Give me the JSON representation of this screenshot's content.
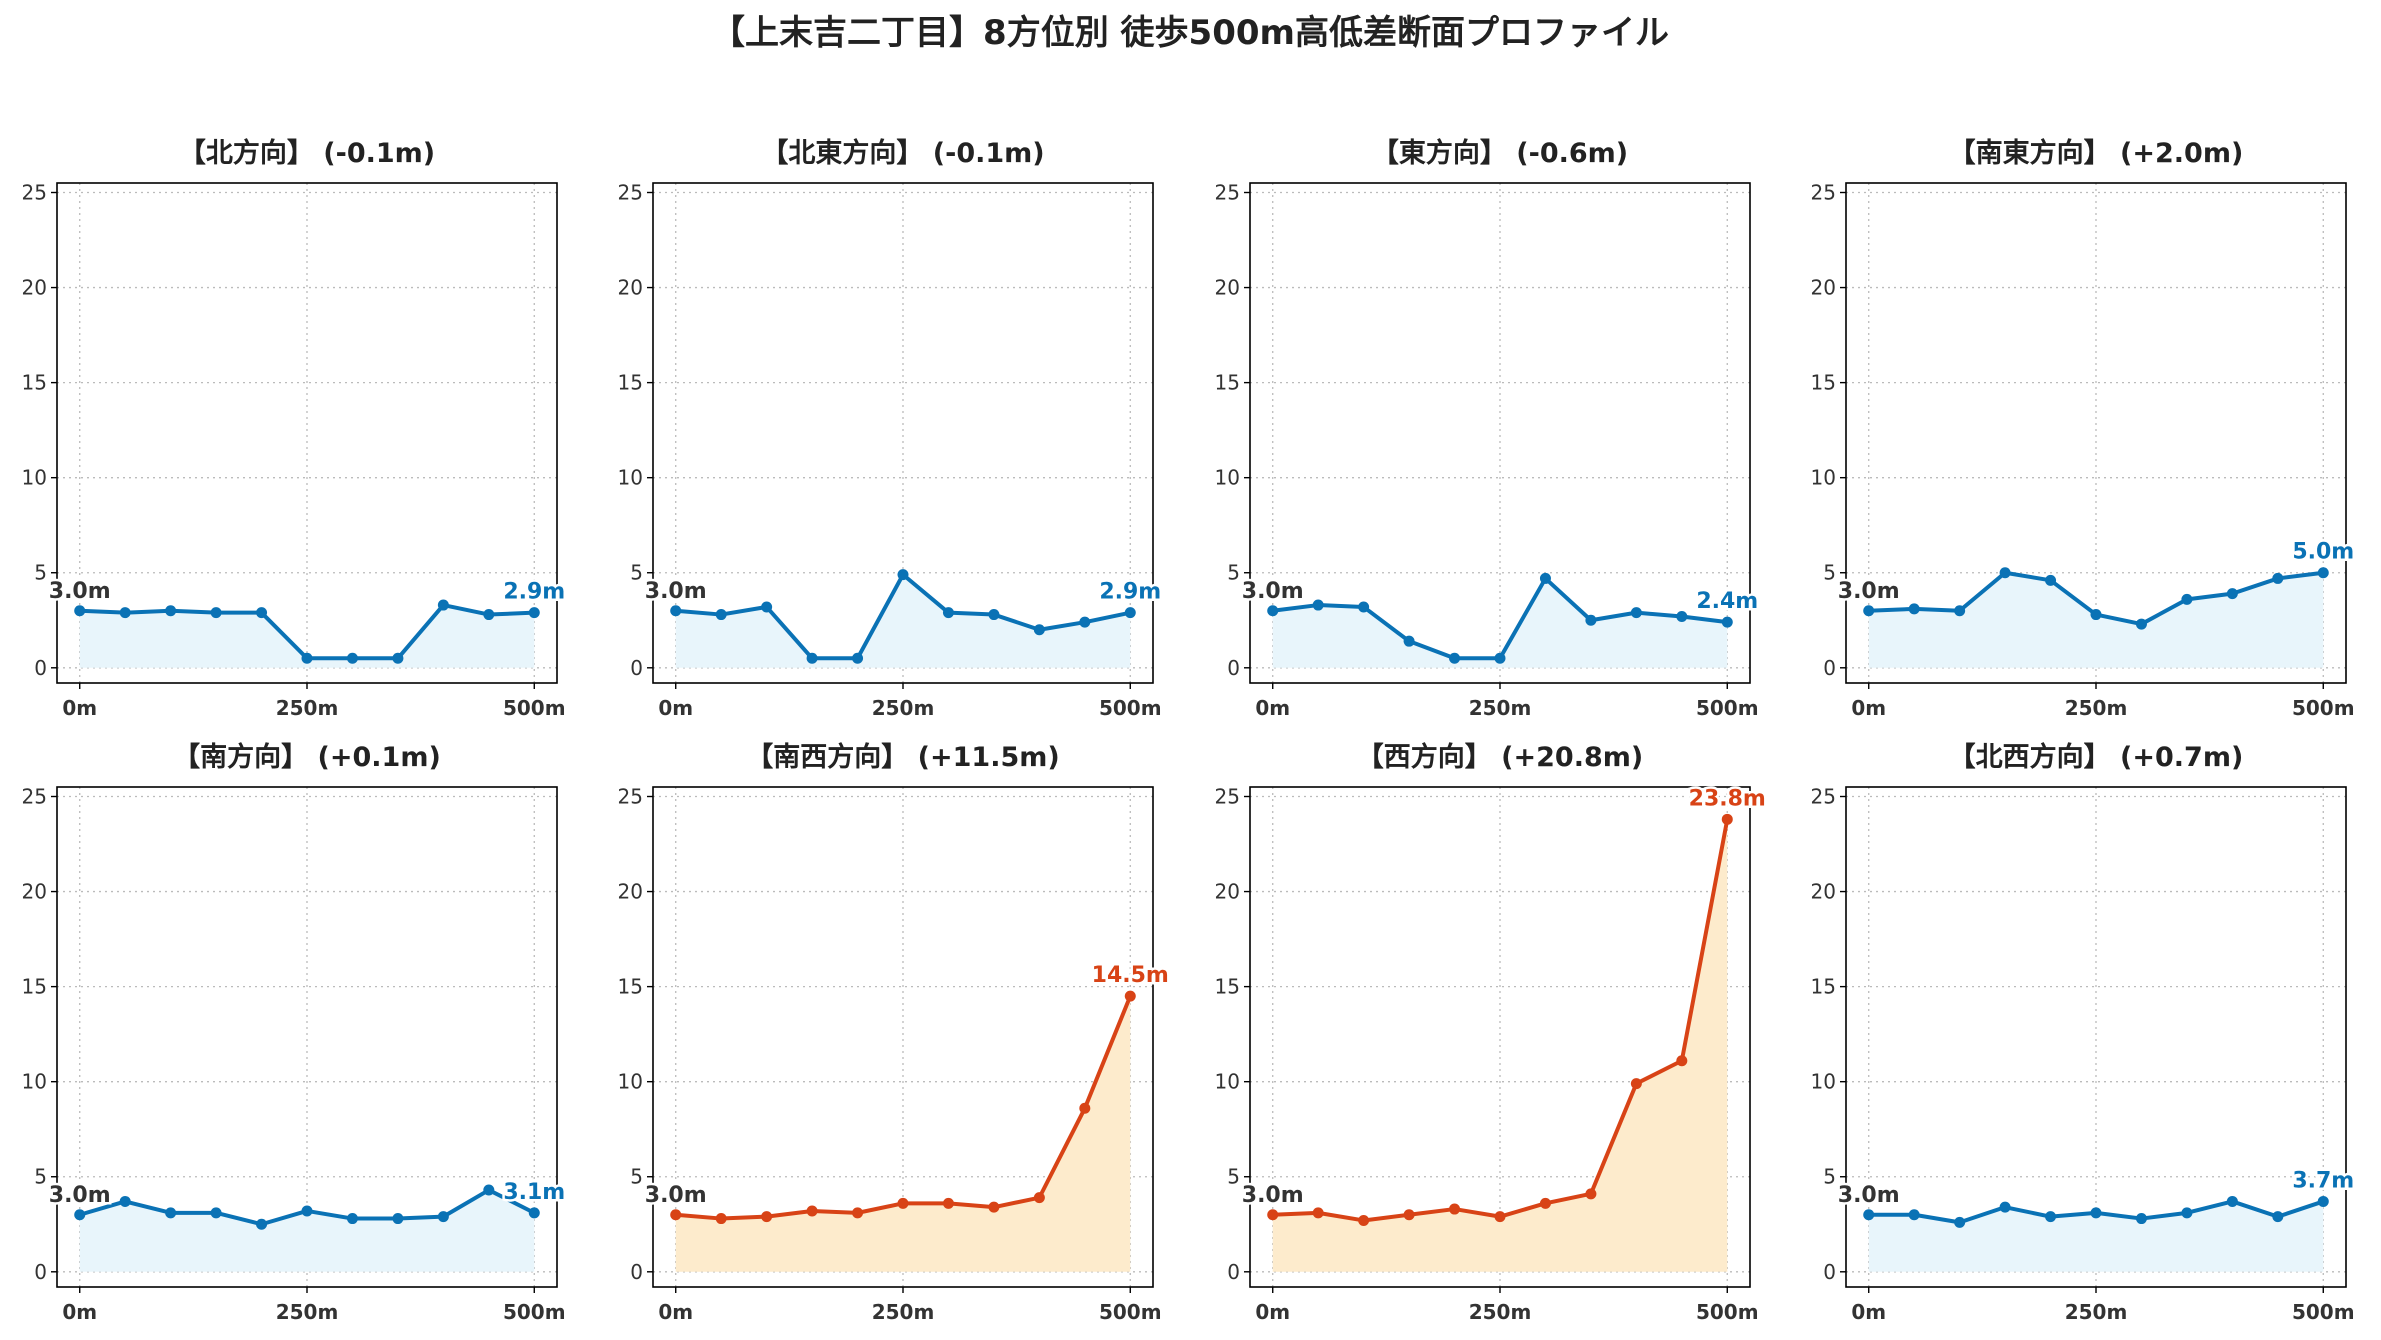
{
  "title": "【上末吉二丁目】8方位別 徒歩500m高低差断面プロファイル",
  "colors": {
    "flat_line": "#0a72b5",
    "flat_fill": "#e8f5fb",
    "steep_line": "#d84316",
    "steep_fill": "#fdebcc",
    "start_label": "#333333"
  },
  "chart_data": [
    {
      "type": "area",
      "title": "【北方向】 (-0.1m)",
      "x": [
        0,
        50,
        100,
        150,
        200,
        250,
        300,
        350,
        400,
        450,
        500
      ],
      "values": [
        3.0,
        2.9,
        3.0,
        2.9,
        2.9,
        0.5,
        0.5,
        0.5,
        3.3,
        2.8,
        2.9
      ],
      "x_ticks": [
        "0m",
        "250m",
        "500m"
      ],
      "y_ticks": [
        0,
        5,
        10,
        15,
        20,
        25
      ],
      "ylim": [
        -0.8,
        25.5
      ],
      "start_label": "3.0m",
      "end_label": "2.9m",
      "style": "flat",
      "grid": true
    },
    {
      "type": "area",
      "title": "【北東方向】 (-0.1m)",
      "x": [
        0,
        50,
        100,
        150,
        200,
        250,
        300,
        350,
        400,
        450,
        500
      ],
      "values": [
        3.0,
        2.8,
        3.2,
        0.5,
        0.5,
        4.9,
        2.9,
        2.8,
        2.0,
        2.4,
        2.9
      ],
      "x_ticks": [
        "0m",
        "250m",
        "500m"
      ],
      "y_ticks": [
        0,
        5,
        10,
        15,
        20,
        25
      ],
      "ylim": [
        -0.8,
        25.5
      ],
      "start_label": "3.0m",
      "end_label": "2.9m",
      "style": "flat",
      "grid": true
    },
    {
      "type": "area",
      "title": "【東方向】 (-0.6m)",
      "x": [
        0,
        50,
        100,
        150,
        200,
        250,
        300,
        350,
        400,
        450,
        500
      ],
      "values": [
        3.0,
        3.3,
        3.2,
        1.4,
        0.5,
        0.5,
        4.7,
        2.5,
        2.9,
        2.7,
        2.4
      ],
      "x_ticks": [
        "0m",
        "250m",
        "500m"
      ],
      "y_ticks": [
        0,
        5,
        10,
        15,
        20,
        25
      ],
      "ylim": [
        -0.8,
        25.5
      ],
      "start_label": "3.0m",
      "end_label": "2.4m",
      "style": "flat",
      "grid": true
    },
    {
      "type": "area",
      "title": "【南東方向】 (+2.0m)",
      "x": [
        0,
        50,
        100,
        150,
        200,
        250,
        300,
        350,
        400,
        450,
        500
      ],
      "values": [
        3.0,
        3.1,
        3.0,
        5.0,
        4.6,
        2.8,
        2.3,
        3.6,
        3.9,
        4.7,
        5.0
      ],
      "x_ticks": [
        "0m",
        "250m",
        "500m"
      ],
      "y_ticks": [
        0,
        5,
        10,
        15,
        20,
        25
      ],
      "ylim": [
        -0.8,
        25.5
      ],
      "start_label": "3.0m",
      "end_label": "5.0m",
      "style": "flat",
      "grid": true
    },
    {
      "type": "area",
      "title": "【南方向】 (+0.1m)",
      "x": [
        0,
        50,
        100,
        150,
        200,
        250,
        300,
        350,
        400,
        450,
        500
      ],
      "values": [
        3.0,
        3.7,
        3.1,
        3.1,
        2.5,
        3.2,
        2.8,
        2.8,
        2.9,
        4.3,
        3.1
      ],
      "x_ticks": [
        "0m",
        "250m",
        "500m"
      ],
      "y_ticks": [
        0,
        5,
        10,
        15,
        20,
        25
      ],
      "ylim": [
        -0.8,
        25.5
      ],
      "start_label": "3.0m",
      "end_label": "3.1m",
      "style": "flat",
      "grid": true
    },
    {
      "type": "area",
      "title": "【南西方向】 (+11.5m)",
      "x": [
        0,
        50,
        100,
        150,
        200,
        250,
        300,
        350,
        400,
        450,
        500
      ],
      "values": [
        3.0,
        2.8,
        2.9,
        3.2,
        3.1,
        3.6,
        3.6,
        3.4,
        3.9,
        8.6,
        14.5
      ],
      "x_ticks": [
        "0m",
        "250m",
        "500m"
      ],
      "y_ticks": [
        0,
        5,
        10,
        15,
        20,
        25
      ],
      "ylim": [
        -0.8,
        25.5
      ],
      "start_label": "3.0m",
      "end_label": "14.5m",
      "style": "steep",
      "grid": true
    },
    {
      "type": "area",
      "title": "【西方向】 (+20.8m)",
      "x": [
        0,
        50,
        100,
        150,
        200,
        250,
        300,
        350,
        400,
        450,
        500
      ],
      "values": [
        3.0,
        3.1,
        2.7,
        3.0,
        3.3,
        2.9,
        3.6,
        4.1,
        9.9,
        11.1,
        23.8
      ],
      "x_ticks": [
        "0m",
        "250m",
        "500m"
      ],
      "y_ticks": [
        0,
        5,
        10,
        15,
        20,
        25
      ],
      "ylim": [
        -0.8,
        25.5
      ],
      "start_label": "3.0m",
      "end_label": "23.8m",
      "style": "steep",
      "grid": true
    },
    {
      "type": "area",
      "title": "【北西方向】 (+0.7m)",
      "x": [
        0,
        50,
        100,
        150,
        200,
        250,
        300,
        350,
        400,
        450,
        500
      ],
      "values": [
        3.0,
        3.0,
        2.6,
        3.4,
        2.9,
        3.1,
        2.8,
        3.1,
        3.7,
        2.9,
        3.7
      ],
      "x_ticks": [
        "0m",
        "250m",
        "500m"
      ],
      "y_ticks": [
        0,
        5,
        10,
        15,
        20,
        25
      ],
      "ylim": [
        -0.8,
        25.5
      ],
      "start_label": "3.0m",
      "end_label": "3.7m",
      "style": "flat",
      "grid": true
    }
  ]
}
